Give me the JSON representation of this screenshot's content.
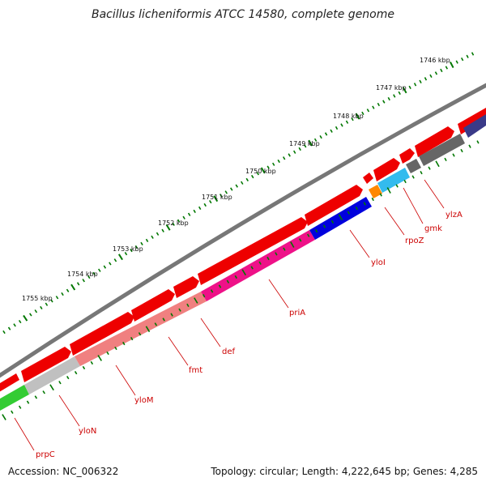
{
  "title": "Bacillus licheniformis ATCC 14580, complete genome",
  "footer": {
    "accession": "Accession: NC_006322",
    "summary": "Topology: circular; Length: 4,222,645 bp; Genes: 4,285"
  },
  "colors": {
    "backbone": "#777777",
    "forward_strand": "#ee0000",
    "tick": "#007700",
    "label": "#cc0000"
  },
  "ruler_labels": [
    "1746 kbp",
    "1747 kbp",
    "1748 kbp",
    "1749 kbp",
    "1750 kbp",
    "1751 kbp",
    "1752 kbp",
    "1753 kbp",
    "1754 kbp",
    "1755 kbp"
  ],
  "genes": [
    {
      "name": "prpC",
      "color": "#33cc33"
    },
    {
      "name": "yloN",
      "color": "#c0c0c0"
    },
    {
      "name": "yloM",
      "color": "#f08080"
    },
    {
      "name": "fmt",
      "color": "#f08080"
    },
    {
      "name": "def",
      "color": "#f08080"
    },
    {
      "name": "priA",
      "color": "#ee1188"
    },
    {
      "name": "yloI",
      "color": "#0000dd"
    },
    {
      "name": "rpoZ",
      "color": "#ff8800"
    },
    {
      "name": "gmk",
      "color": "#33bbee"
    },
    {
      "name": "ylzA",
      "color": "#666666"
    }
  ]
}
